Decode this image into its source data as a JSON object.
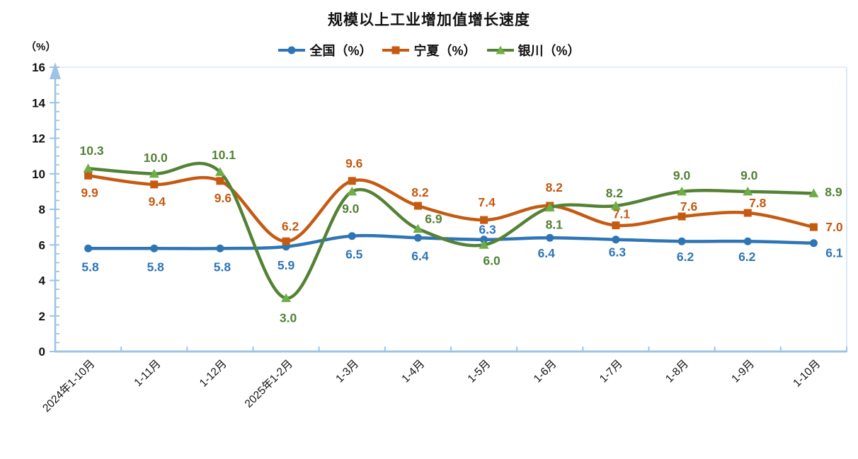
{
  "chart_data": {
    "type": "line",
    "title": "规模以上工业增加值增长速度",
    "ylabel": "（%）",
    "xlabel": "",
    "ylim": [
      0,
      16
    ],
    "y_major_step": 2,
    "y_minor_step": 0.5,
    "grid": false,
    "legend_position": "top-center",
    "line_smoothing": true,
    "axis_color": "#9DC3E6",
    "plot_border_color": "#D9E7F5",
    "tick_label_color": "#111111",
    "categories": [
      "2024年1-10月",
      "1-11月",
      "1-12月",
      "2025年1-2月",
      "1-3月",
      "1-4月",
      "1-5月",
      "1-6月",
      "1-7月",
      "1-8月",
      "1-9月",
      "1-10月"
    ],
    "series": [
      {
        "key": "national",
        "name": "全国（%）",
        "color": "#2E75B6",
        "label_color": "#2E75B6",
        "marker": "circle",
        "marker_color": "#2E75B6",
        "values": [
          5.8,
          5.8,
          5.8,
          5.9,
          6.5,
          6.4,
          6.3,
          6.4,
          6.3,
          6.2,
          6.2,
          6.1
        ],
        "label_offsets": [
          [
            3,
            26
          ],
          [
            2,
            26
          ],
          [
            3,
            26
          ],
          [
            0,
            26
          ],
          [
            3,
            26
          ],
          [
            3,
            26
          ],
          [
            5,
            -14
          ],
          [
            -5,
            22
          ],
          [
            2,
            18
          ],
          [
            5,
            22
          ],
          [
            -1,
            22
          ],
          [
            29,
            14
          ]
        ]
      },
      {
        "key": "ningxia",
        "name": "宁夏（%）",
        "color": "#C55A11",
        "label_color": "#C55A11",
        "marker": "square",
        "marker_color": "#C55A11",
        "values": [
          9.9,
          9.4,
          9.6,
          6.2,
          9.6,
          8.2,
          7.4,
          8.2,
          7.1,
          7.6,
          7.8,
          7.0
        ],
        "label_offsets": [
          [
            2,
            24
          ],
          [
            4,
            24
          ],
          [
            4,
            24
          ],
          [
            6,
            -21
          ],
          [
            3,
            -25
          ],
          [
            3,
            -19
          ],
          [
            4,
            -25
          ],
          [
            6,
            -26
          ],
          [
            8,
            -16
          ],
          [
            10,
            -14
          ],
          [
            14,
            -14
          ],
          [
            29,
            0
          ]
        ]
      },
      {
        "key": "yinchuan",
        "name": "银川（%）",
        "color": "#548235",
        "label_color": "#538135",
        "marker": "triangle",
        "marker_color": "#6FAD47",
        "values": [
          10.3,
          10.0,
          10.1,
          3.0,
          9.0,
          6.9,
          6.0,
          8.1,
          8.2,
          9.0,
          9.0,
          8.9
        ],
        "label_offsets": [
          [
            5,
            -25
          ],
          [
            2,
            -23
          ],
          [
            5,
            -24
          ],
          [
            3,
            28
          ],
          [
            -2,
            24
          ],
          [
            22,
            -14
          ],
          [
            11,
            22
          ],
          [
            6,
            24
          ],
          [
            -2,
            -18
          ],
          [
            0,
            -23
          ],
          [
            2,
            -23
          ],
          [
            28,
            -2
          ]
        ]
      }
    ]
  }
}
